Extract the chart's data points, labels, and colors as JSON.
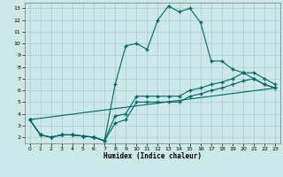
{
  "xlabel": "Humidex (Indice chaleur)",
  "background_color": "#cce8e8",
  "grid_color": "#aacccc",
  "line_color": "#006666",
  "xlim": [
    -0.5,
    23.5
  ],
  "ylim": [
    1.5,
    13.5
  ],
  "yticks": [
    2,
    3,
    4,
    5,
    6,
    7,
    8,
    9,
    10,
    11,
    12,
    13
  ],
  "xticks": [
    0,
    1,
    2,
    3,
    4,
    5,
    6,
    7,
    8,
    9,
    10,
    11,
    12,
    13,
    14,
    15,
    16,
    17,
    18,
    19,
    20,
    21,
    22,
    23
  ],
  "series1_x": [
    0,
    1,
    2,
    3,
    4,
    5,
    6,
    7,
    8,
    9,
    10,
    11,
    12,
    13,
    14,
    15,
    16,
    17,
    18,
    19,
    20,
    21,
    22,
    23
  ],
  "series1_y": [
    3.5,
    2.2,
    2.0,
    2.2,
    2.2,
    2.1,
    2.0,
    1.7,
    6.5,
    9.8,
    10.0,
    9.5,
    12.0,
    13.2,
    12.7,
    13.0,
    11.8,
    8.5,
    8.5,
    7.8,
    7.5,
    7.0,
    6.5,
    6.2
  ],
  "series2_x": [
    0,
    1,
    2,
    3,
    4,
    5,
    6,
    7,
    8,
    9,
    10,
    11,
    12,
    13,
    14,
    15,
    16,
    17,
    18,
    19,
    20,
    21,
    22,
    23
  ],
  "series2_y": [
    3.5,
    2.2,
    2.0,
    2.2,
    2.2,
    2.1,
    2.0,
    1.7,
    3.2,
    3.5,
    5.0,
    5.0,
    5.0,
    5.0,
    5.0,
    5.5,
    5.7,
    6.0,
    6.2,
    6.5,
    6.8,
    7.0,
    6.5,
    6.2
  ],
  "series3_x": [
    0,
    1,
    2,
    3,
    4,
    5,
    6,
    7,
    8,
    9,
    10,
    11,
    12,
    13,
    14,
    15,
    16,
    17,
    18,
    19,
    20,
    21,
    22,
    23
  ],
  "series3_y": [
    3.5,
    2.2,
    2.0,
    2.2,
    2.2,
    2.1,
    2.0,
    1.7,
    3.8,
    4.0,
    5.5,
    5.5,
    5.5,
    5.5,
    5.5,
    6.0,
    6.2,
    6.5,
    6.7,
    7.0,
    7.5,
    7.5,
    7.0,
    6.5
  ],
  "series4_x": [
    0,
    23
  ],
  "series4_y": [
    3.5,
    6.2
  ],
  "marker": "+",
  "markersize": 3,
  "linewidth": 0.8
}
